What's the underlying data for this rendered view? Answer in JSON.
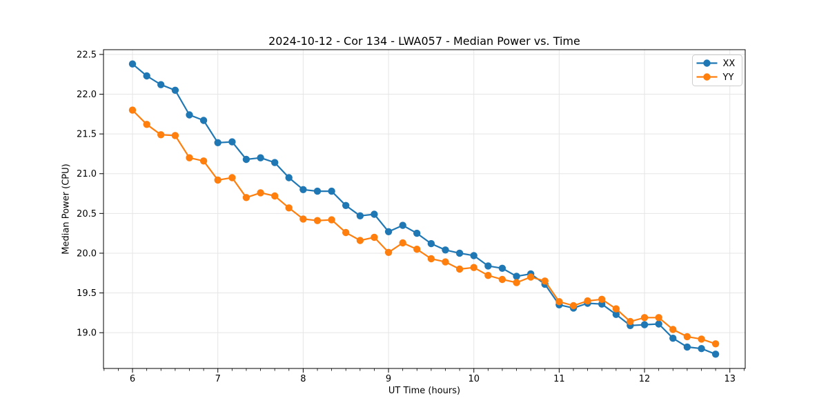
{
  "chart_data": {
    "type": "line",
    "title": "2024-10-12 - Cor 134 - LWA057 - Median Power vs. Time",
    "xlabel": "UT Time (hours)",
    "ylabel": "Median Power (CPU)",
    "xlim": [
      5.66,
      13.18
    ],
    "ylim": [
      18.55,
      22.56
    ],
    "xticks": [
      6,
      7,
      8,
      9,
      10,
      11,
      12,
      13
    ],
    "yticks": [
      19.0,
      19.5,
      20.0,
      20.5,
      21.0,
      21.5,
      22.0,
      22.5
    ],
    "x_minor_tick_step_hours": 0.1667,
    "grid": true,
    "grid_color": "#e5e5e5",
    "axis_color": "#000000",
    "legend_position": "upper right",
    "x": [
      6.0,
      6.167,
      6.333,
      6.5,
      6.667,
      6.833,
      7.0,
      7.167,
      7.333,
      7.5,
      7.667,
      7.833,
      8.0,
      8.167,
      8.333,
      8.5,
      8.667,
      8.833,
      9.0,
      9.167,
      9.333,
      9.5,
      9.667,
      9.833,
      10.0,
      10.167,
      10.333,
      10.5,
      10.667,
      10.833,
      11.0,
      11.167,
      11.333,
      11.5,
      11.667,
      11.833,
      12.0,
      12.167,
      12.333,
      12.5,
      12.667,
      12.833
    ],
    "series": [
      {
        "name": "XX",
        "color": "#1f77b4",
        "values": [
          22.38,
          22.23,
          22.12,
          22.05,
          21.74,
          21.67,
          21.39,
          21.4,
          21.18,
          21.2,
          21.14,
          20.95,
          20.8,
          20.78,
          20.78,
          20.6,
          20.47,
          20.49,
          20.27,
          20.35,
          20.25,
          20.12,
          20.04,
          20.0,
          19.97,
          19.84,
          19.81,
          19.71,
          19.74,
          19.61,
          19.35,
          19.31,
          19.37,
          19.36,
          19.23,
          19.09,
          19.1,
          19.11,
          18.93,
          18.82,
          18.8,
          18.73
        ]
      },
      {
        "name": "YY",
        "color": "#ff7f0e",
        "values": [
          21.8,
          21.62,
          21.49,
          21.48,
          21.2,
          21.16,
          20.92,
          20.95,
          20.7,
          20.76,
          20.72,
          20.57,
          20.43,
          20.41,
          20.42,
          20.26,
          20.16,
          20.2,
          20.01,
          20.13,
          20.05,
          19.93,
          19.89,
          19.8,
          19.82,
          19.72,
          19.67,
          19.63,
          19.7,
          19.65,
          19.39,
          19.34,
          19.4,
          19.42,
          19.3,
          19.14,
          19.19,
          19.19,
          19.04,
          18.95,
          18.92,
          18.86
        ]
      }
    ]
  }
}
